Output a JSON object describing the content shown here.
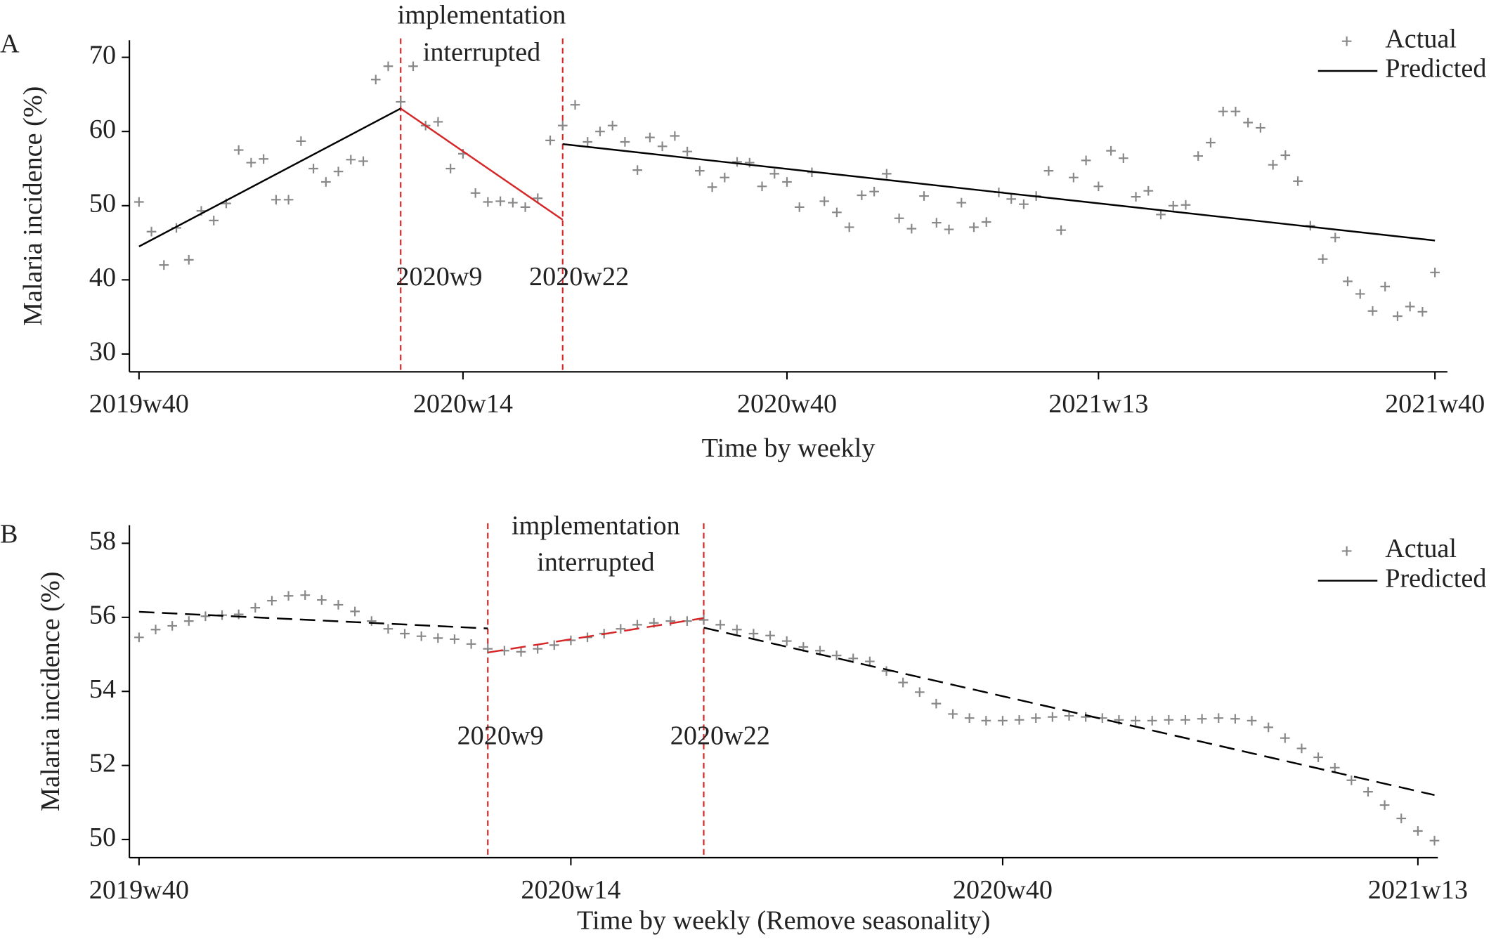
{
  "chart_data": [
    {
      "type": "line",
      "panel": "A",
      "x_label": "Time by weekly",
      "y_label": "Malaria incidence (%)",
      "xlim": [
        -0.77,
        105.0
      ],
      "ylim": [
        27.6,
        72.3
      ],
      "xticks": [
        {
          "value": 0,
          "label": "2019w40"
        },
        {
          "value": 26,
          "label": "2020w14"
        },
        {
          "value": 52,
          "label": "2020w40"
        },
        {
          "value": 77,
          "label": "2021w13"
        },
        {
          "value": 104,
          "label": "2021w40"
        }
      ],
      "yticks": [
        30,
        40,
        50,
        60,
        70
      ],
      "annotation": [
        "implementation",
        "interrupted"
      ],
      "interventions": [
        {
          "x": 21,
          "label": "2020w9"
        },
        {
          "x": 34,
          "label": "2020w22"
        }
      ],
      "intervention_color": "#d62728",
      "legend": "top-right",
      "series": [
        {
          "name": "Actual",
          "color": "#888888",
          "marker": "+",
          "x": [
            0,
            1,
            2,
            3,
            4,
            5,
            6,
            7,
            8,
            9,
            10,
            11,
            12,
            13,
            14,
            15,
            16,
            17,
            18,
            19,
            20,
            21,
            22,
            23,
            24,
            25,
            26,
            27,
            28,
            29,
            30,
            31,
            32,
            33,
            34,
            35,
            36,
            37,
            38,
            39,
            40,
            41,
            42,
            43,
            44,
            45,
            46,
            47,
            48,
            49,
            50,
            51,
            52,
            53,
            54,
            55,
            56,
            57,
            58,
            59,
            60,
            61,
            62,
            63,
            64,
            65,
            66,
            67,
            68,
            69,
            70,
            71,
            72,
            73,
            74,
            75,
            76,
            77,
            78,
            79,
            80,
            81,
            82,
            83,
            84,
            85,
            86,
            87,
            88,
            89,
            90,
            91,
            92,
            93,
            94,
            95,
            96,
            97,
            98,
            99,
            100,
            101,
            102,
            103,
            104
          ],
          "values": [
            50.5,
            46.5,
            42,
            47,
            42.7,
            49.3,
            48,
            50.3,
            57.5,
            55.8,
            56.3,
            50.8,
            50.8,
            58.7,
            55,
            53.2,
            54.6,
            56.2,
            56,
            67,
            68.8,
            64,
            68.8,
            60.8,
            61.3,
            55,
            57,
            51.7,
            50.5,
            50.6,
            50.4,
            49.8,
            51,
            58.8,
            60.8,
            63.6,
            58.6,
            60,
            60.8,
            58.6,
            54.8,
            59.2,
            58,
            59.4,
            57.3,
            54.7,
            52.5,
            53.8,
            55.9,
            55.8,
            52.6,
            54.3,
            53.2,
            49.8,
            54.5,
            50.6,
            49.1,
            47.1,
            51.4,
            51.9,
            54.3,
            48.3,
            46.9,
            51.3,
            47.7,
            46.8,
            50.4,
            47.1,
            47.8,
            51.8,
            50.9,
            50.2,
            51.3,
            54.7,
            46.7,
            53.8,
            56.1,
            52.6,
            57.4,
            56.4,
            51.2,
            52,
            48.8,
            50,
            50.1,
            56.7,
            58.5,
            62.7,
            62.7,
            61.2,
            60.5,
            55.5,
            56.8,
            53.3,
            47.3,
            42.8,
            45.7,
            39.8,
            38.1,
            35.8,
            39.1,
            35.1,
            36.4,
            35.7,
            41
          ]
        },
        {
          "name": "Predicted",
          "color": "#000000",
          "segments": [
            {
              "x": [
                0,
                21
              ],
              "values": [
                44.5,
                63.1
              ],
              "color": "#000000",
              "dashed": false
            },
            {
              "x": [
                21,
                34
              ],
              "values": [
                63.1,
                48.1
              ],
              "color": "#d62728",
              "dashed": false
            },
            {
              "x": [
                34,
                104
              ],
              "values": [
                58.3,
                45.3
              ],
              "color": "#000000",
              "dashed": false
            }
          ]
        }
      ]
    },
    {
      "type": "line",
      "panel": "B",
      "x_label": "Time by weekly (Remove seasonality)",
      "y_label": "Malaria incidence (%)",
      "xlim": [
        -0.58,
        78.2
      ],
      "ylim": [
        49.51,
        58.49
      ],
      "xticks": [
        {
          "value": 0,
          "label": "2019w40"
        },
        {
          "value": 26,
          "label": "2020w14"
        },
        {
          "value": 52,
          "label": "2020w40"
        },
        {
          "value": 77,
          "label": "2021w13"
        }
      ],
      "yticks": [
        50,
        52,
        54,
        56,
        58
      ],
      "annotation": [
        "implementation",
        "interrupted"
      ],
      "interventions": [
        {
          "x": 21,
          "label": "2020w9"
        },
        {
          "x": 34,
          "label": "2020w22"
        }
      ],
      "intervention_color": "#d62728",
      "legend": "top-right",
      "series": [
        {
          "name": "Actual",
          "color": "#888888",
          "marker": "+",
          "x": [
            0,
            1,
            2,
            3,
            4,
            5,
            6,
            7,
            8,
            9,
            10,
            11,
            12,
            13,
            14,
            15,
            16,
            17,
            18,
            19,
            20,
            21,
            22,
            23,
            24,
            25,
            26,
            27,
            28,
            29,
            30,
            31,
            32,
            33,
            34,
            35,
            36,
            37,
            38,
            39,
            40,
            41,
            42,
            43,
            44,
            45,
            46,
            47,
            48,
            49,
            50,
            51,
            52,
            53,
            54,
            55,
            56,
            57,
            58,
            59,
            60,
            61,
            62,
            63,
            64,
            65,
            66,
            67,
            68,
            69,
            70,
            71,
            72,
            73,
            74,
            75,
            76,
            77,
            78
          ],
          "values": [
            55.46,
            55.67,
            55.77,
            55.9,
            56.03,
            56.06,
            56.08,
            56.26,
            56.45,
            56.58,
            56.6,
            56.47,
            56.34,
            56.16,
            55.9,
            55.69,
            55.56,
            55.49,
            55.44,
            55.41,
            55.28,
            55.15,
            55.1,
            55.07,
            55.15,
            55.25,
            55.38,
            55.46,
            55.56,
            55.69,
            55.8,
            55.85,
            55.9,
            55.9,
            55.93,
            55.8,
            55.67,
            55.56,
            55.51,
            55.36,
            55.2,
            55.1,
            54.97,
            54.89,
            54.81,
            54.55,
            54.24,
            53.98,
            53.67,
            53.39,
            53.28,
            53.21,
            53.21,
            53.23,
            53.28,
            53.31,
            53.34,
            53.31,
            53.28,
            53.23,
            53.21,
            53.21,
            53.23,
            53.23,
            53.26,
            53.28,
            53.26,
            53.21,
            53.03,
            52.74,
            52.46,
            52.22,
            51.94,
            51.6,
            51.29,
            50.93,
            50.57,
            50.23,
            49.97
          ]
        },
        {
          "name": "Predicted",
          "color": "#000000",
          "segments": [
            {
              "x": [
                0,
                21
              ],
              "values": [
                56.15,
                55.7
              ],
              "color": "#000000",
              "dashed": true
            },
            {
              "x": [
                21,
                34
              ],
              "values": [
                55.05,
                55.98
              ],
              "color": "#d62728",
              "dashed": true
            },
            {
              "x": [
                34,
                78
              ],
              "values": [
                55.72,
                51.2
              ],
              "color": "#000000",
              "dashed": true
            }
          ]
        }
      ]
    }
  ]
}
